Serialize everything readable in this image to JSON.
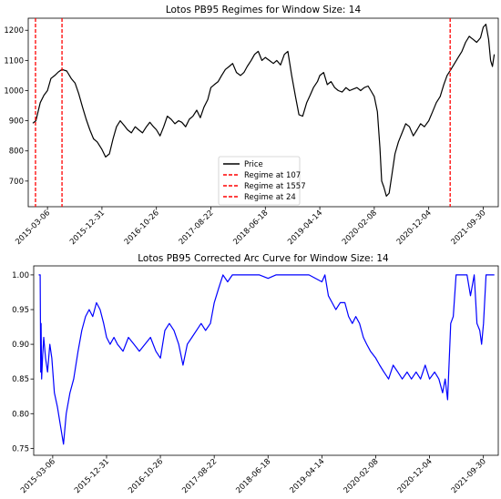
{
  "chart_data": [
    {
      "type": "line",
      "title": "Lotos PB95 Regimes for Window Size: 14",
      "x_tick_labels": [
        "2015-03-06",
        "2015-12-31",
        "2016-10-26",
        "2017-08-22",
        "2018-06-18",
        "2019-04-14",
        "2020-02-08",
        "2020-12-04",
        "2021-09-30"
      ],
      "y_ticks": [
        700,
        800,
        900,
        1000,
        1100,
        1200
      ],
      "ylim": [
        615,
        1240
      ],
      "grid": false,
      "legend_position": "bottom-center",
      "series": [
        {
          "name": "Price",
          "color": "#000000",
          "points": [
            [
              "2014-12-15",
              892
            ],
            [
              "2015-01-01",
              900
            ],
            [
              "2015-01-25",
              960
            ],
            [
              "2015-02-15",
              985
            ],
            [
              "2015-03-06",
              1000
            ],
            [
              "2015-03-25",
              1040
            ],
            [
              "2015-04-15",
              1050
            ],
            [
              "2015-05-05",
              1062
            ],
            [
              "2015-05-25",
              1070
            ],
            [
              "2015-06-20",
              1065
            ],
            [
              "2015-07-15",
              1040
            ],
            [
              "2015-08-05",
              1025
            ],
            [
              "2015-08-25",
              990
            ],
            [
              "2015-09-15",
              945
            ],
            [
              "2015-10-05",
              905
            ],
            [
              "2015-10-25",
              870
            ],
            [
              "2015-11-15",
              840
            ],
            [
              "2015-12-05",
              830
            ],
            [
              "2015-12-31",
              805
            ],
            [
              "2016-01-20",
              780
            ],
            [
              "2016-02-10",
              790
            ],
            [
              "2016-03-01",
              840
            ],
            [
              "2016-03-20",
              880
            ],
            [
              "2016-04-10",
              900
            ],
            [
              "2016-05-01",
              885
            ],
            [
              "2016-05-20",
              870
            ],
            [
              "2016-06-10",
              860
            ],
            [
              "2016-07-01",
              880
            ],
            [
              "2016-07-20",
              870
            ],
            [
              "2016-08-10",
              860
            ],
            [
              "2016-09-01",
              880
            ],
            [
              "2016-09-20",
              895
            ],
            [
              "2016-10-10",
              880
            ],
            [
              "2016-10-26",
              870
            ],
            [
              "2016-11-15",
              850
            ],
            [
              "2016-12-05",
              880
            ],
            [
              "2016-12-25",
              915
            ],
            [
              "2017-01-15",
              905
            ],
            [
              "2017-02-05",
              890
            ],
            [
              "2017-02-25",
              900
            ],
            [
              "2017-03-15",
              895
            ],
            [
              "2017-04-05",
              880
            ],
            [
              "2017-04-25",
              905
            ],
            [
              "2017-05-15",
              915
            ],
            [
              "2017-06-05",
              935
            ],
            [
              "2017-06-25",
              910
            ],
            [
              "2017-07-15",
              945
            ],
            [
              "2017-08-05",
              970
            ],
            [
              "2017-08-22",
              1010
            ],
            [
              "2017-09-10",
              1020
            ],
            [
              "2017-10-01",
              1030
            ],
            [
              "2017-10-20",
              1050
            ],
            [
              "2017-11-10",
              1070
            ],
            [
              "2017-12-01",
              1080
            ],
            [
              "2017-12-20",
              1090
            ],
            [
              "2018-01-10",
              1060
            ],
            [
              "2018-02-01",
              1050
            ],
            [
              "2018-02-20",
              1060
            ],
            [
              "2018-03-10",
              1080
            ],
            [
              "2018-04-01",
              1100
            ],
            [
              "2018-04-20",
              1120
            ],
            [
              "2018-05-10",
              1130
            ],
            [
              "2018-05-30",
              1100
            ],
            [
              "2018-06-18",
              1110
            ],
            [
              "2018-07-10",
              1100
            ],
            [
              "2018-08-01",
              1090
            ],
            [
              "2018-08-20",
              1100
            ],
            [
              "2018-09-10",
              1085
            ],
            [
              "2018-10-01",
              1120
            ],
            [
              "2018-10-20",
              1130
            ],
            [
              "2018-11-10",
              1050
            ],
            [
              "2018-12-01",
              980
            ],
            [
              "2018-12-20",
              920
            ],
            [
              "2019-01-10",
              915
            ],
            [
              "2019-02-01",
              960
            ],
            [
              "2019-02-20",
              985
            ],
            [
              "2019-03-10",
              1010
            ],
            [
              "2019-04-01",
              1030
            ],
            [
              "2019-04-14",
              1050
            ],
            [
              "2019-05-05",
              1060
            ],
            [
              "2019-05-25",
              1020
            ],
            [
              "2019-06-15",
              1030
            ],
            [
              "2019-07-05",
              1010
            ],
            [
              "2019-07-25",
              1000
            ],
            [
              "2019-08-15",
              995
            ],
            [
              "2019-09-05",
              1010
            ],
            [
              "2019-09-25",
              1000
            ],
            [
              "2019-10-15",
              1005
            ],
            [
              "2019-11-05",
              1010
            ],
            [
              "2019-11-25",
              1000
            ],
            [
              "2019-12-15",
              1010
            ],
            [
              "2020-01-05",
              1015
            ],
            [
              "2020-01-20",
              1000
            ],
            [
              "2020-02-08",
              980
            ],
            [
              "2020-02-25",
              930
            ],
            [
              "2020-03-10",
              810
            ],
            [
              "2020-03-20",
              700
            ],
            [
              "2020-04-01",
              680
            ],
            [
              "2020-04-15",
              650
            ],
            [
              "2020-04-30",
              660
            ],
            [
              "2020-05-15",
              720
            ],
            [
              "2020-06-01",
              790
            ],
            [
              "2020-06-20",
              830
            ],
            [
              "2020-07-10",
              860
            ],
            [
              "2020-07-30",
              890
            ],
            [
              "2020-08-20",
              880
            ],
            [
              "2020-09-10",
              850
            ],
            [
              "2020-10-01",
              870
            ],
            [
              "2020-10-20",
              890
            ],
            [
              "2020-11-10",
              880
            ],
            [
              "2020-12-04",
              900
            ],
            [
              "2020-12-25",
              930
            ],
            [
              "2021-01-15",
              960
            ],
            [
              "2021-02-05",
              980
            ],
            [
              "2021-02-25",
              1020
            ],
            [
              "2021-03-15",
              1050
            ],
            [
              "2021-04-05",
              1070
            ],
            [
              "2021-04-25",
              1090
            ],
            [
              "2021-05-15",
              1110
            ],
            [
              "2021-06-05",
              1130
            ],
            [
              "2021-06-25",
              1160
            ],
            [
              "2021-07-15",
              1180
            ],
            [
              "2021-08-05",
              1170
            ],
            [
              "2021-08-25",
              1160
            ],
            [
              "2021-09-15",
              1175
            ],
            [
              "2021-09-30",
              1210
            ],
            [
              "2021-10-15",
              1220
            ],
            [
              "2021-10-30",
              1170
            ],
            [
              "2021-11-10",
              1100
            ],
            [
              "2021-11-20",
              1080
            ],
            [
              "2021-11-30",
              1120
            ]
          ]
        }
      ],
      "regimes": {
        "color": "#ff0000",
        "style": "dashed",
        "lines": [
          {
            "label": "Regime at 107",
            "x": "2014-12-30"
          },
          {
            "label": "Regime at 1557",
            "x": "2021-04-01"
          },
          {
            "label": "Regime at 24",
            "x": "2015-05-25"
          }
        ]
      }
    },
    {
      "type": "line",
      "title": "Lotos PB95 Corrected Arc Curve for Window Size: 14",
      "x_tick_labels": [
        "2015-03-06",
        "2015-12-31",
        "2016-10-26",
        "2017-08-22",
        "2018-06-18",
        "2019-04-14",
        "2020-02-08",
        "2020-12-04",
        "2021-09-30"
      ],
      "y_ticks": [
        0.75,
        0.8,
        0.85,
        0.9,
        0.95,
        1.0
      ],
      "y_tick_labels": [
        "0.75",
        "0.80",
        "0.85",
        "0.90",
        "0.95",
        "1.00"
      ],
      "ylim": [
        0.74,
        1.013
      ],
      "grid": false,
      "series": [
        {
          "name": "",
          "color": "#0000ff",
          "points": [
            [
              "2014-12-18",
              1.0
            ],
            [
              "2014-12-26",
              1.0
            ],
            [
              "2014-12-29",
              0.86
            ],
            [
              "2014-12-31",
              0.93
            ],
            [
              "2015-01-03",
              0.85
            ],
            [
              "2015-01-08",
              0.88
            ],
            [
              "2015-01-15",
              0.91
            ],
            [
              "2015-01-25",
              0.88
            ],
            [
              "2015-02-05",
              0.86
            ],
            [
              "2015-02-18",
              0.9
            ],
            [
              "2015-03-01",
              0.88
            ],
            [
              "2015-03-15",
              0.83
            ],
            [
              "2015-04-01",
              0.81
            ],
            [
              "2015-04-20",
              0.78
            ],
            [
              "2015-05-05",
              0.756
            ],
            [
              "2015-05-20",
              0.8
            ],
            [
              "2015-06-10",
              0.83
            ],
            [
              "2015-07-01",
              0.85
            ],
            [
              "2015-07-25",
              0.89
            ],
            [
              "2015-08-15",
              0.92
            ],
            [
              "2015-09-05",
              0.94
            ],
            [
              "2015-09-25",
              0.95
            ],
            [
              "2015-10-15",
              0.94
            ],
            [
              "2015-11-05",
              0.96
            ],
            [
              "2015-11-25",
              0.95
            ],
            [
              "2015-12-15",
              0.93
            ],
            [
              "2015-12-31",
              0.91
            ],
            [
              "2016-01-20",
              0.9
            ],
            [
              "2016-02-10",
              0.91
            ],
            [
              "2016-03-01",
              0.9
            ],
            [
              "2016-04-01",
              0.89
            ],
            [
              "2016-05-01",
              0.91
            ],
            [
              "2016-06-01",
              0.9
            ],
            [
              "2016-07-01",
              0.89
            ],
            [
              "2016-08-01",
              0.9
            ],
            [
              "2016-09-01",
              0.91
            ],
            [
              "2016-10-01",
              0.89
            ],
            [
              "2016-10-26",
              0.88
            ],
            [
              "2016-11-20",
              0.92
            ],
            [
              "2016-12-15",
              0.93
            ],
            [
              "2017-01-10",
              0.92
            ],
            [
              "2017-02-05",
              0.9
            ],
            [
              "2017-03-01",
              0.87
            ],
            [
              "2017-03-25",
              0.9
            ],
            [
              "2017-04-20",
              0.91
            ],
            [
              "2017-05-15",
              0.92
            ],
            [
              "2017-06-10",
              0.93
            ],
            [
              "2017-07-05",
              0.92
            ],
            [
              "2017-08-01",
              0.93
            ],
            [
              "2017-08-22",
              0.96
            ],
            [
              "2017-09-15",
              0.98
            ],
            [
              "2017-10-10",
              1.0
            ],
            [
              "2017-11-05",
              0.99
            ],
            [
              "2017-12-01",
              1.0
            ],
            [
              "2018-01-01",
              1.0
            ],
            [
              "2018-03-01",
              1.0
            ],
            [
              "2018-05-01",
              1.0
            ],
            [
              "2018-06-18",
              0.995
            ],
            [
              "2018-08-01",
              1.0
            ],
            [
              "2018-10-01",
              1.0
            ],
            [
              "2018-12-01",
              1.0
            ],
            [
              "2019-02-01",
              1.0
            ],
            [
              "2019-04-14",
              0.99
            ],
            [
              "2019-05-01",
              1.0
            ],
            [
              "2019-05-20",
              0.97
            ],
            [
              "2019-06-10",
              0.96
            ],
            [
              "2019-07-01",
              0.95
            ],
            [
              "2019-07-25",
              0.96
            ],
            [
              "2019-08-20",
              0.96
            ],
            [
              "2019-09-10",
              0.94
            ],
            [
              "2019-10-01",
              0.93
            ],
            [
              "2019-10-20",
              0.94
            ],
            [
              "2019-11-10",
              0.93
            ],
            [
              "2019-12-01",
              0.91
            ],
            [
              "2019-12-20",
              0.9
            ],
            [
              "2020-01-10",
              0.89
            ],
            [
              "2020-02-08",
              0.88
            ],
            [
              "2020-03-01",
              0.87
            ],
            [
              "2020-03-25",
              0.86
            ],
            [
              "2020-04-20",
              0.85
            ],
            [
              "2020-05-15",
              0.87
            ],
            [
              "2020-06-10",
              0.86
            ],
            [
              "2020-07-05",
              0.85
            ],
            [
              "2020-08-01",
              0.86
            ],
            [
              "2020-08-25",
              0.85
            ],
            [
              "2020-09-20",
              0.86
            ],
            [
              "2020-10-15",
              0.85
            ],
            [
              "2020-11-10",
              0.87
            ],
            [
              "2020-12-04",
              0.85
            ],
            [
              "2021-01-01",
              0.86
            ],
            [
              "2021-01-25",
              0.85
            ],
            [
              "2021-02-15",
              0.83
            ],
            [
              "2021-03-01",
              0.85
            ],
            [
              "2021-03-15",
              0.82
            ],
            [
              "2021-04-01",
              0.93
            ],
            [
              "2021-04-15",
              0.94
            ],
            [
              "2021-05-01",
              1.0
            ],
            [
              "2021-06-01",
              1.0
            ],
            [
              "2021-07-01",
              1.0
            ],
            [
              "2021-07-20",
              0.97
            ],
            [
              "2021-08-10",
              1.0
            ],
            [
              "2021-08-25",
              0.93
            ],
            [
              "2021-09-10",
              0.92
            ],
            [
              "2021-09-20",
              0.9
            ],
            [
              "2021-10-01",
              0.93
            ],
            [
              "2021-10-15",
              1.0
            ],
            [
              "2021-11-05",
              1.0
            ],
            [
              "2021-11-30",
              1.0
            ]
          ]
        }
      ]
    }
  ]
}
